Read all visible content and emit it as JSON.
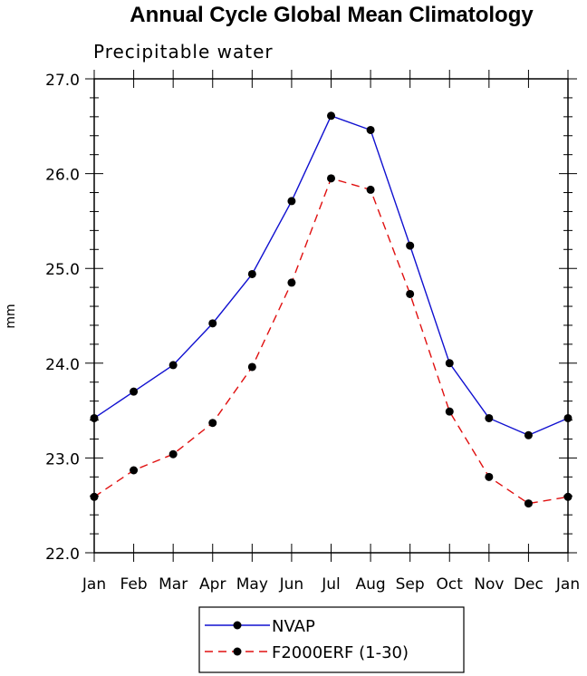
{
  "chart_data": {
    "type": "line",
    "title": "Annual Cycle Global Mean Climatology",
    "subtitle": "Precipitable water",
    "xlabel": "",
    "ylabel": "mm",
    "categories": [
      "Jan",
      "Feb",
      "Mar",
      "Apr",
      "May",
      "Jun",
      "Jul",
      "Aug",
      "Sep",
      "Oct",
      "Nov",
      "Dec",
      "Jan"
    ],
    "ylim": [
      22.0,
      27.0
    ],
    "yticks": [
      "22.0",
      "23.0",
      "24.0",
      "25.0",
      "26.0",
      "27.0"
    ],
    "grid": false,
    "legend_position": "bottom",
    "series": [
      {
        "name": "NVAP",
        "color": "#1010d0",
        "line_style": "solid",
        "values": [
          23.42,
          23.7,
          23.98,
          24.42,
          24.94,
          25.71,
          26.61,
          26.46,
          25.24,
          24.0,
          23.42,
          23.24,
          23.42
        ]
      },
      {
        "name": "F2000ERF (1-30)",
        "color": "#e01010",
        "line_style": "dashed",
        "values": [
          22.59,
          22.87,
          23.04,
          23.37,
          23.96,
          24.85,
          25.95,
          25.83,
          24.73,
          23.49,
          22.8,
          22.52,
          22.59
        ]
      }
    ]
  }
}
